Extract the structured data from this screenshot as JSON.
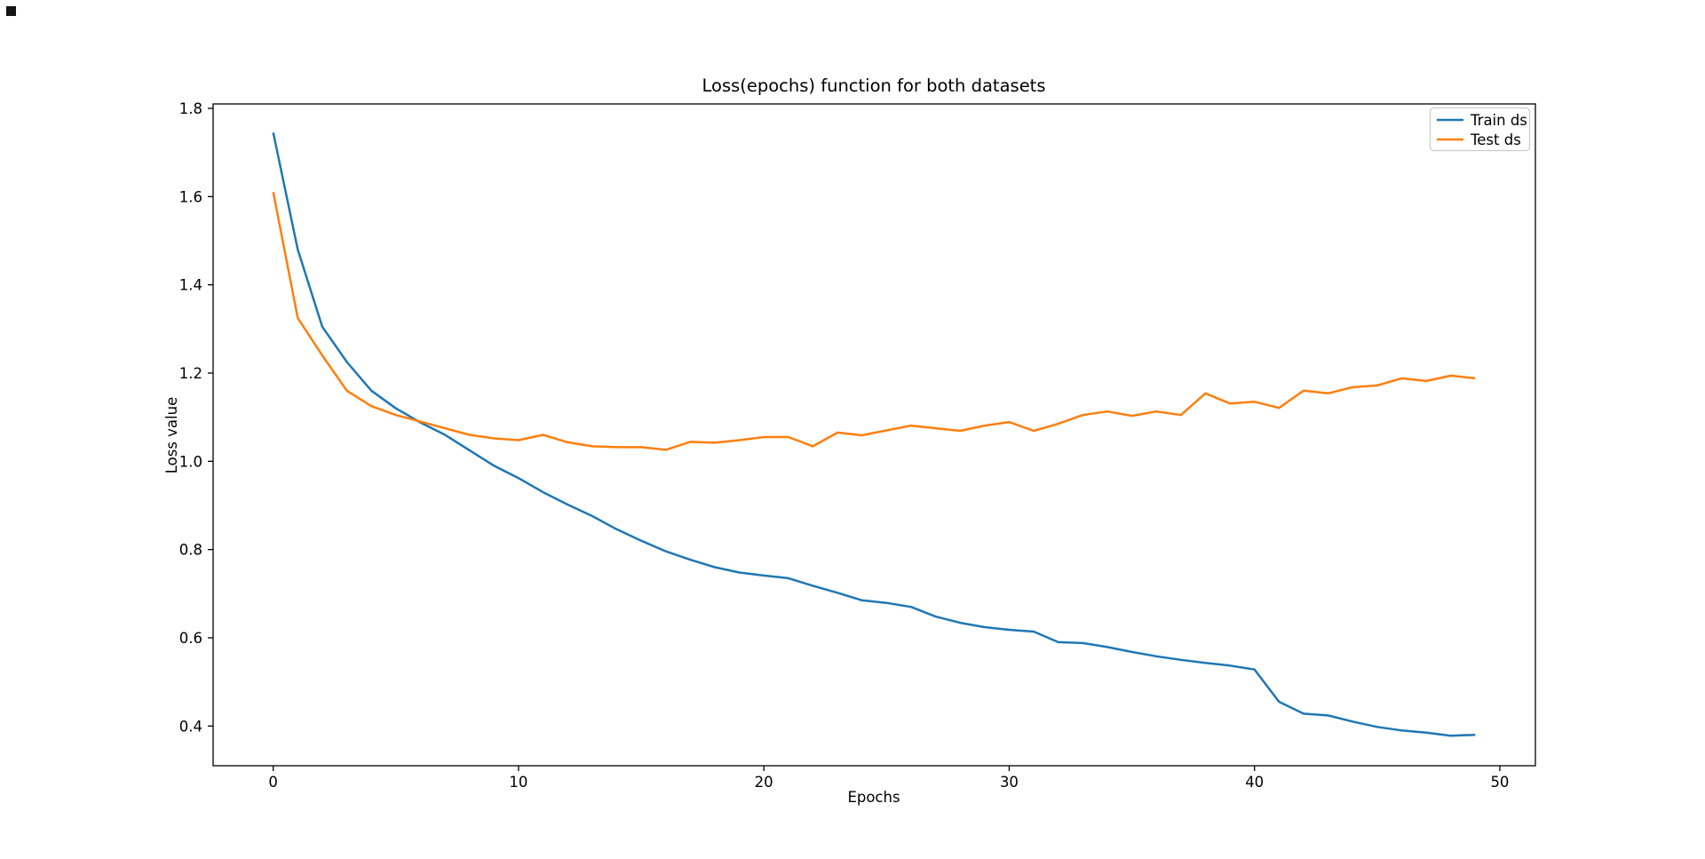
{
  "figure": {
    "artifact": ""
  },
  "chart_data": {
    "type": "line",
    "title": "Loss(epochs) function for both datasets",
    "xlabel": "Epochs",
    "ylabel": "Loss value",
    "xlim": [
      -2.45,
      51.45
    ],
    "ylim": [
      0.31,
      1.81
    ],
    "x_ticks": [
      0,
      10,
      20,
      30,
      40,
      50
    ],
    "y_ticks": [
      0.4,
      0.6,
      0.8,
      1.0,
      1.2,
      1.4,
      1.6,
      1.8
    ],
    "grid": false,
    "legend_position": "upper right",
    "x": [
      0,
      1,
      2,
      3,
      4,
      5,
      6,
      7,
      8,
      9,
      10,
      11,
      12,
      13,
      14,
      15,
      16,
      17,
      18,
      19,
      20,
      21,
      22,
      23,
      24,
      25,
      26,
      27,
      28,
      29,
      30,
      31,
      32,
      33,
      34,
      35,
      36,
      37,
      38,
      39,
      40,
      41,
      42,
      43,
      44,
      45,
      46,
      47,
      48,
      49
    ],
    "series": [
      {
        "name": "Train ds",
        "color": "#1f77b4",
        "values": [
          1.745,
          1.48,
          1.305,
          1.225,
          1.16,
          1.12,
          1.088,
          1.06,
          1.025,
          0.99,
          0.962,
          0.93,
          0.902,
          0.876,
          0.846,
          0.82,
          0.796,
          0.777,
          0.76,
          0.748,
          0.741,
          0.735,
          0.718,
          0.702,
          0.685,
          0.679,
          0.67,
          0.648,
          0.634,
          0.624,
          0.618,
          0.614,
          0.59,
          0.588,
          0.579,
          0.568,
          0.558,
          0.55,
          0.543,
          0.537,
          0.528,
          0.455,
          0.428,
          0.424,
          0.41,
          0.398,
          0.39,
          0.385,
          0.378,
          0.38
        ]
      },
      {
        "name": "Test ds",
        "color": "#ff7f0e",
        "values": [
          1.61,
          1.325,
          1.24,
          1.16,
          1.125,
          1.105,
          1.09,
          1.075,
          1.06,
          1.052,
          1.048,
          1.06,
          1.043,
          1.034,
          1.032,
          1.032,
          1.026,
          1.044,
          1.042,
          1.048,
          1.055,
          1.055,
          1.034,
          1.065,
          1.059,
          1.07,
          1.081,
          1.075,
          1.069,
          1.081,
          1.089,
          1.069,
          1.085,
          1.105,
          1.113,
          1.103,
          1.113,
          1.105,
          1.154,
          1.131,
          1.135,
          1.121,
          1.16,
          1.154,
          1.168,
          1.172,
          1.188,
          1.182,
          1.194,
          1.188
        ]
      }
    ]
  }
}
